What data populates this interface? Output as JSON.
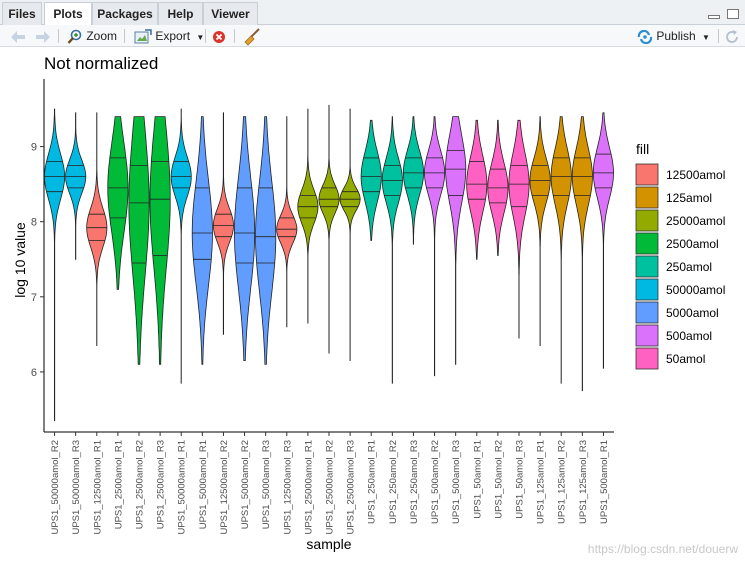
{
  "tabs": [
    {
      "label": "Files",
      "active": false
    },
    {
      "label": "Plots",
      "active": true
    },
    {
      "label": "Packages",
      "active": false
    },
    {
      "label": "Help",
      "active": false
    },
    {
      "label": "Viewer",
      "active": false
    }
  ],
  "toolbar": {
    "zoom_label": "Zoom",
    "export_label": "Export",
    "publish_label": "Publish"
  },
  "watermark": "https://blog.csdn.net/douerw",
  "colors": {
    "12500amol": "#F8766D",
    "125amol": "#D39200",
    "25000amol": "#93AA00",
    "2500amol": "#00BA38",
    "250amol": "#00C19F",
    "50000amol": "#00B9E3",
    "5000amol": "#619CFF",
    "500amol": "#DB72FB",
    "50amol": "#FF61C3"
  },
  "chart_data": {
    "type": "violin",
    "title": "Not normalized",
    "xlabel": "sample",
    "ylabel": "log 10 value",
    "ylim": [
      5.2,
      9.9
    ],
    "yticks": [
      6,
      7,
      8,
      9
    ],
    "grid": false,
    "legend": {
      "title": "fill",
      "position": "right",
      "entries": [
        "12500amol",
        "125amol",
        "25000amol",
        "2500amol",
        "250amol",
        "50000amol",
        "5000amol",
        "500amol",
        "50amol"
      ]
    },
    "categories": [
      "UPS1_50000amol_R2",
      "UPS1_50000amol_R3",
      "UPS1_12500amol_R1",
      "UPS1_2500amol_R1",
      "UPS1_2500amol_R2",
      "UPS1_2500amol_R3",
      "UPS1_50000amol_R1",
      "UPS1_5000amol_R1",
      "UPS1_12500amol_R2",
      "UPS1_5000amol_R2",
      "UPS1_5000amol_R3",
      "UPS1_12500amol_R3",
      "UPS1_25000amol_R1",
      "UPS1_25000amol_R2",
      "UPS1_25000amol_R3",
      "UPS1_250amol_R1",
      "UPS1_250amol_R2",
      "UPS1_250amol_R3",
      "UPS1_500amol_R2",
      "UPS1_500amol_R3",
      "UPS1_50amol_R1",
      "UPS1_50amol_R2",
      "UPS1_50amol_R3",
      "UPS1_125amol_R1",
      "UPS1_125amol_R2",
      "UPS1_125amol_R3",
      "UPS1_500amol_R1"
    ],
    "series": [
      {
        "fill": "50000amol",
        "min": 5.35,
        "max": 9.5,
        "q1": 8.4,
        "median": 8.6,
        "q3": 8.8
      },
      {
        "fill": "50000amol",
        "min": 7.5,
        "max": 9.45,
        "q1": 8.45,
        "median": 8.6,
        "q3": 8.75
      },
      {
        "fill": "12500amol",
        "min": 6.35,
        "max": 9.45,
        "q1": 7.75,
        "median": 7.92,
        "q3": 8.1
      },
      {
        "fill": "2500amol",
        "min": 7.1,
        "max": 9.4,
        "q1": 8.05,
        "median": 8.45,
        "q3": 8.85
      },
      {
        "fill": "2500amol",
        "min": 6.1,
        "max": 9.4,
        "q1": 7.45,
        "median": 8.25,
        "q3": 8.75
      },
      {
        "fill": "2500amol",
        "min": 6.1,
        "max": 9.4,
        "q1": 7.55,
        "median": 8.3,
        "q3": 8.8
      },
      {
        "fill": "50000amol",
        "min": 5.85,
        "max": 9.5,
        "q1": 8.45,
        "median": 8.6,
        "q3": 8.8
      },
      {
        "fill": "5000amol",
        "min": 6.1,
        "max": 9.4,
        "q1": 7.5,
        "median": 7.85,
        "q3": 8.45
      },
      {
        "fill": "12500amol",
        "min": 6.5,
        "max": 9.45,
        "q1": 7.8,
        "median": 7.95,
        "q3": 8.1
      },
      {
        "fill": "5000amol",
        "min": 6.15,
        "max": 9.4,
        "q1": 7.45,
        "median": 7.85,
        "q3": 8.45
      },
      {
        "fill": "5000amol",
        "min": 6.1,
        "max": 9.4,
        "q1": 7.45,
        "median": 7.8,
        "q3": 8.45
      },
      {
        "fill": "12500amol",
        "min": 6.6,
        "max": 9.4,
        "q1": 7.8,
        "median": 7.9,
        "q3": 8.05
      },
      {
        "fill": "25000amol",
        "min": 6.65,
        "max": 9.5,
        "q1": 8.05,
        "median": 8.2,
        "q3": 8.35
      },
      {
        "fill": "25000amol",
        "min": 6.25,
        "max": 9.55,
        "q1": 8.2,
        "median": 8.3,
        "q3": 8.45
      },
      {
        "fill": "25000amol",
        "min": 6.15,
        "max": 9.5,
        "q1": 8.2,
        "median": 8.3,
        "q3": 8.4
      },
      {
        "fill": "250amol",
        "min": 7.75,
        "max": 9.35,
        "q1": 8.4,
        "median": 8.6,
        "q3": 8.85
      },
      {
        "fill": "250amol",
        "min": 5.85,
        "max": 9.4,
        "q1": 8.35,
        "median": 8.55,
        "q3": 8.75
      },
      {
        "fill": "250amol",
        "min": 7.7,
        "max": 9.4,
        "q1": 8.45,
        "median": 8.65,
        "q3": 8.85
      },
      {
        "fill": "500amol",
        "min": 5.95,
        "max": 9.4,
        "q1": 8.45,
        "median": 8.65,
        "q3": 8.85
      },
      {
        "fill": "500amol",
        "min": 6.1,
        "max": 9.4,
        "q1": 8.35,
        "median": 8.7,
        "q3": 8.95
      },
      {
        "fill": "50amol",
        "min": 7.5,
        "max": 9.35,
        "q1": 8.3,
        "median": 8.5,
        "q3": 8.8
      },
      {
        "fill": "50amol",
        "min": 7.55,
        "max": 9.35,
        "q1": 8.25,
        "median": 8.45,
        "q3": 8.7
      },
      {
        "fill": "50amol",
        "min": 6.45,
        "max": 9.35,
        "q1": 8.2,
        "median": 8.5,
        "q3": 8.75
      },
      {
        "fill": "125amol",
        "min": 6.35,
        "max": 9.4,
        "q1": 8.35,
        "median": 8.55,
        "q3": 8.75
      },
      {
        "fill": "125amol",
        "min": 5.85,
        "max": 9.4,
        "q1": 8.35,
        "median": 8.6,
        "q3": 8.85
      },
      {
        "fill": "125amol",
        "min": 5.75,
        "max": 9.4,
        "q1": 8.35,
        "median": 8.6,
        "q3": 8.85
      },
      {
        "fill": "500amol",
        "min": 6.05,
        "max": 9.45,
        "q1": 8.45,
        "median": 8.65,
        "q3": 8.9
      }
    ]
  }
}
